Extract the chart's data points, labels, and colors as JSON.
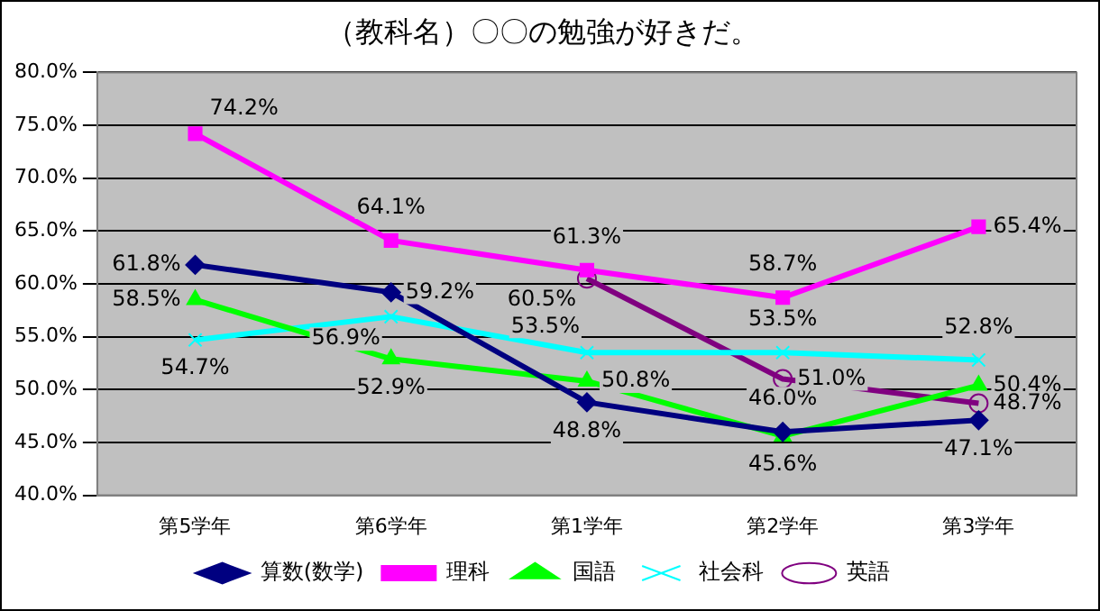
{
  "chart_data": {
    "type": "line",
    "title": "（教科名）〇〇の勉強が好きだ。",
    "categories": [
      "第5学年",
      "第6学年",
      "第1学年",
      "第2学年",
      "第3学年"
    ],
    "ylim": [
      40,
      80
    ],
    "yticks": [
      {
        "value": 40,
        "label": "40.0%"
      },
      {
        "value": 45,
        "label": "45.0%"
      },
      {
        "value": 50,
        "label": "50.0%"
      },
      {
        "value": 55,
        "label": "55.0%"
      },
      {
        "value": 60,
        "label": "60.0%"
      },
      {
        "value": 65,
        "label": "65.0%"
      },
      {
        "value": 70,
        "label": "70.0%"
      },
      {
        "value": 75,
        "label": "75.0%"
      },
      {
        "value": 80,
        "label": "80.0%"
      }
    ],
    "grid": "y",
    "legend": "bottom",
    "series": [
      {
        "name": "算数(数学)",
        "color": "#000080",
        "marker": "diamond",
        "values": [
          61.8,
          59.2,
          48.8,
          46.0,
          47.1
        ],
        "value_labels": [
          "61.8%",
          "59.2%",
          "48.8%",
          "46.0%",
          "47.1%"
        ]
      },
      {
        "name": "理科",
        "color": "#ff00ff",
        "marker": "square",
        "values": [
          74.2,
          64.1,
          61.3,
          58.7,
          65.4
        ],
        "value_labels": [
          "74.2%",
          "64.1%",
          "61.3%",
          "58.7%",
          "65.4%"
        ]
      },
      {
        "name": "国語",
        "color": "#00ff00",
        "marker": "triangle",
        "values": [
          58.5,
          52.9,
          50.8,
          45.6,
          50.4
        ],
        "value_labels": [
          "58.5%",
          "52.9%",
          "50.8%",
          "45.6%",
          "50.4%"
        ]
      },
      {
        "name": "社会科",
        "color": "#00ffff",
        "marker": "cross",
        "values": [
          54.7,
          56.9,
          53.5,
          53.5,
          52.8
        ],
        "value_labels": [
          "54.7%",
          "56.9%",
          "53.5%",
          "53.5%",
          "52.8%"
        ]
      },
      {
        "name": "英語",
        "color": "#800080",
        "marker": "circle",
        "values": [
          null,
          null,
          60.5,
          51.0,
          48.7
        ],
        "value_labels": [
          null,
          null,
          "60.5%",
          "51.0%",
          "48.7%"
        ]
      }
    ]
  }
}
